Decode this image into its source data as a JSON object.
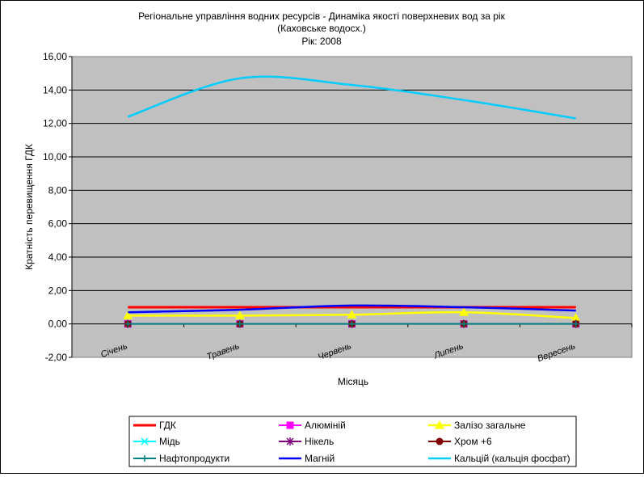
{
  "chart_data": {
    "type": "line",
    "title": "Регіональне управління водних ресурсів - Динаміка якості поверхневих вод за рік",
    "subtitle": "(Каховське водосх.)",
    "year_label": "Рік: 2008",
    "xlabel": "Місяць",
    "ylabel": "Кратність перевищення ГДК",
    "categories": [
      "Січень",
      "Травень",
      "Червень",
      "Липень",
      "Вересень"
    ],
    "ylim": [
      -2,
      16
    ],
    "yticks": [
      "-2,00",
      "0,00",
      "2,00",
      "4,00",
      "6,00",
      "8,00",
      "10,00",
      "12,00",
      "14,00",
      "16,00"
    ],
    "ytick_values": [
      -2,
      0,
      2,
      4,
      6,
      8,
      10,
      12,
      14,
      16
    ],
    "grid": true,
    "legend_position": "bottom",
    "plot_background": "#C0C0C0",
    "series": [
      {
        "name": "ГДК",
        "values": [
          1,
          1,
          1,
          1,
          1
        ],
        "color": "#FF0000",
        "marker": "none",
        "smooth": false,
        "width": 3
      },
      {
        "name": "Алюміній",
        "values": [
          0,
          0,
          0,
          0,
          0
        ],
        "color": "#FF00FF",
        "marker": "square",
        "smooth": false,
        "width": 1.5
      },
      {
        "name": "Залізо загальне",
        "values": [
          0.5,
          0.5,
          0.55,
          0.7,
          0.35
        ],
        "color": "#FFFF00",
        "marker": "triangle",
        "smooth": true,
        "width": 2.5
      },
      {
        "name": "Мідь",
        "values": [
          0,
          0,
          0,
          0,
          0
        ],
        "color": "#00FFFF",
        "marker": "x",
        "smooth": false,
        "width": 1.5
      },
      {
        "name": "Нікель",
        "values": [
          0,
          0,
          0,
          0,
          0
        ],
        "color": "#800080",
        "marker": "star",
        "smooth": false,
        "width": 1.5
      },
      {
        "name": "Хром +6",
        "values": [
          0,
          0,
          0,
          0,
          0
        ],
        "color": "#800000",
        "marker": "circle",
        "smooth": false,
        "width": 1.5
      },
      {
        "name": "Нафтопродукти",
        "values": [
          0,
          0,
          0,
          0,
          0
        ],
        "color": "#008080",
        "marker": "plus",
        "smooth": false,
        "width": 2
      },
      {
        "name": "Магній",
        "values": [
          0.7,
          0.85,
          1.1,
          1.0,
          0.8
        ],
        "color": "#0000FF",
        "marker": "none",
        "smooth": true,
        "width": 2.5
      },
      {
        "name": "Кальцій (кальція фосфат)",
        "values": [
          12.4,
          14.7,
          14.3,
          13.4,
          12.3
        ],
        "color": "#00CCFF",
        "marker": "none",
        "smooth": true,
        "width": 2.5
      }
    ]
  }
}
